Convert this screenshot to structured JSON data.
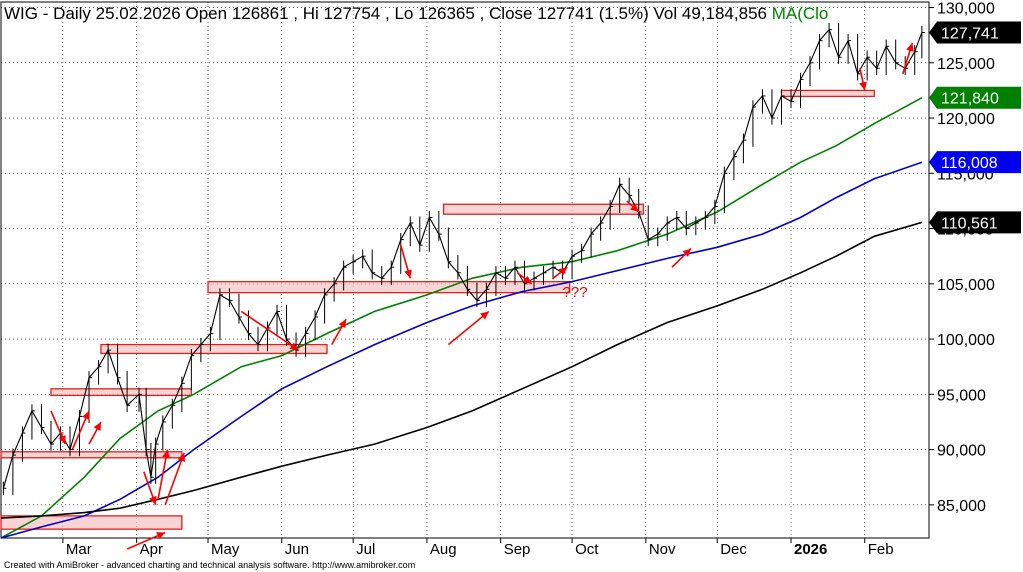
{
  "header": {
    "symbol": "WIG",
    "period": "Daily",
    "date": "25.02.2026",
    "open_label": "Open",
    "open": "126861",
    "high_label": "Hi",
    "high": "127754",
    "low_label": "Lo",
    "low": "126365",
    "close_label": "Close",
    "close": "127741",
    "change": "(1.5%)",
    "vol_label": "Vol",
    "volume": "49,184,856",
    "ma_label": "MA(Clo"
  },
  "footer": "Created with AmiBroker - advanced charting and technical analysis software. http://www.amibroker.com",
  "colors": {
    "price": "#000000",
    "ma_short": "#008000",
    "ma_mid": "#0000cc",
    "ma_long": "#000000",
    "zone_fill": "#f7c6c6",
    "zone_stroke": "#e02020",
    "arrow": "#ff0000",
    "grid": "#000000",
    "badge_price": "#000000",
    "badge_ma_short": "#008000",
    "badge_ma_mid": "#0000ee",
    "badge_ma_long": "#000000"
  },
  "chart_data": {
    "type": "line",
    "title": "WIG - Daily 25.02.2026",
    "ylim": [
      82000,
      130500
    ],
    "y_ticks": [
      85000,
      90000,
      95000,
      100000,
      105000,
      110000,
      115000,
      120000,
      125000,
      130000
    ],
    "y_tick_labels": [
      "85,000",
      "90,000",
      "95,000",
      "100,000",
      "105,000",
      "110,000",
      "115,000",
      "120,000",
      "125,000",
      "130,000"
    ],
    "x_range": [
      "2025-02-03",
      "2026-02-28"
    ],
    "months": [
      {
        "label": "Mar",
        "date": "2025-03-01",
        "bold": false
      },
      {
        "label": "Apr",
        "date": "2025-04-01",
        "bold": false
      },
      {
        "label": "May",
        "date": "2025-05-01",
        "bold": false
      },
      {
        "label": "Jun",
        "date": "2025-06-01",
        "bold": false
      },
      {
        "label": "Jul",
        "date": "2025-07-01",
        "bold": false
      },
      {
        "label": "Aug",
        "date": "2025-08-01",
        "bold": false
      },
      {
        "label": "Sep",
        "date": "2025-09-01",
        "bold": false
      },
      {
        "label": "Oct",
        "date": "2025-10-01",
        "bold": false
      },
      {
        "label": "Nov",
        "date": "2025-11-01",
        "bold": false
      },
      {
        "label": "Dec",
        "date": "2025-12-01",
        "bold": false
      },
      {
        "label": "2026",
        "date": "2026-01-01",
        "bold": true
      },
      {
        "label": "Feb",
        "date": "2026-02-01",
        "bold": false
      }
    ],
    "series": [
      {
        "kind": "price",
        "x": [
          "2025-02-04",
          "2025-02-08",
          "2025-02-12",
          "2025-02-16",
          "2025-02-20",
          "2025-02-24",
          "2025-02-28",
          "2025-03-04",
          "2025-03-08",
          "2025-03-12",
          "2025-03-16",
          "2025-03-20",
          "2025-03-24",
          "2025-03-28",
          "2025-04-02",
          "2025-04-05",
          "2025-04-07",
          "2025-04-09",
          "2025-04-12",
          "2025-04-16",
          "2025-04-20",
          "2025-04-24",
          "2025-04-28",
          "2025-05-02",
          "2025-05-06",
          "2025-05-10",
          "2025-05-14",
          "2025-05-18",
          "2025-05-22",
          "2025-05-26",
          "2025-05-30",
          "2025-06-03",
          "2025-06-07",
          "2025-06-11",
          "2025-06-15",
          "2025-06-19",
          "2025-06-23",
          "2025-06-27",
          "2025-07-01",
          "2025-07-05",
          "2025-07-09",
          "2025-07-13",
          "2025-07-17",
          "2025-07-21",
          "2025-07-25",
          "2025-07-29",
          "2025-08-02",
          "2025-08-06",
          "2025-08-10",
          "2025-08-14",
          "2025-08-18",
          "2025-08-22",
          "2025-08-26",
          "2025-08-30",
          "2025-09-03",
          "2025-09-07",
          "2025-09-11",
          "2025-09-15",
          "2025-09-19",
          "2025-09-23",
          "2025-09-27",
          "2025-10-01",
          "2025-10-05",
          "2025-10-09",
          "2025-10-13",
          "2025-10-17",
          "2025-10-21",
          "2025-10-25",
          "2025-10-29",
          "2025-11-02",
          "2025-11-06",
          "2025-11-10",
          "2025-11-14",
          "2025-11-18",
          "2025-11-22",
          "2025-11-26",
          "2025-11-30",
          "2025-12-04",
          "2025-12-08",
          "2025-12-12",
          "2025-12-16",
          "2025-12-20",
          "2025-12-24",
          "2025-12-28",
          "2026-01-01",
          "2026-01-05",
          "2026-01-09",
          "2026-01-13",
          "2026-01-17",
          "2026-01-21",
          "2026-01-25",
          "2026-01-29",
          "2026-02-02",
          "2026-02-06",
          "2026-02-10",
          "2026-02-14",
          "2026-02-18",
          "2026-02-22",
          "2026-02-25"
        ],
        "values": [
          86500,
          89500,
          91500,
          93500,
          92000,
          90500,
          91500,
          90000,
          93000,
          96500,
          97500,
          99000,
          96500,
          94000,
          95000,
          90000,
          87500,
          90500,
          92500,
          94000,
          96000,
          98500,
          99500,
          100500,
          104000,
          103500,
          102000,
          100500,
          99500,
          101000,
          102500,
          100000,
          99000,
          100500,
          102000,
          104000,
          105000,
          106500,
          107000,
          107500,
          106000,
          105500,
          106500,
          109000,
          110500,
          108500,
          111000,
          109500,
          107000,
          106000,
          104500,
          103500,
          104500,
          106000,
          105500,
          106500,
          105000,
          105500,
          106000,
          106500,
          106000,
          107500,
          108000,
          109500,
          110500,
          112000,
          114000,
          113000,
          111500,
          109000,
          109500,
          110500,
          111000,
          110000,
          110500,
          111000,
          112000,
          115000,
          116500,
          118000,
          121000,
          122000,
          120000,
          122000,
          121500,
          123500,
          125000,
          127000,
          128000,
          125500,
          127000,
          124000,
          125500,
          124500,
          126500,
          125000,
          124500,
          126000,
          127741
        ]
      },
      {
        "kind": "ma",
        "label": "121,840",
        "x": [
          "2025-02-03",
          "2025-02-20",
          "2025-03-10",
          "2025-03-25",
          "2025-04-10",
          "2025-04-25",
          "2025-05-15",
          "2025-06-01",
          "2025-06-20",
          "2025-07-10",
          "2025-08-01",
          "2025-08-20",
          "2025-09-10",
          "2025-10-01",
          "2025-10-20",
          "2025-11-10",
          "2025-12-01",
          "2025-12-20",
          "2026-01-05",
          "2026-01-20",
          "2026-02-05",
          "2026-02-25"
        ],
        "values": [
          82000,
          84000,
          87500,
          91000,
          93500,
          95000,
          97500,
          98500,
          100500,
          102500,
          104000,
          105500,
          106500,
          107000,
          108000,
          109500,
          111500,
          114000,
          116000,
          117500,
          119500,
          121840
        ]
      },
      {
        "kind": "ma",
        "label": "116,008",
        "x": [
          "2025-02-03",
          "2025-02-20",
          "2025-03-10",
          "2025-03-25",
          "2025-04-10",
          "2025-04-25",
          "2025-05-15",
          "2025-06-01",
          "2025-06-20",
          "2025-07-10",
          "2025-08-01",
          "2025-08-20",
          "2025-09-10",
          "2025-10-01",
          "2025-10-20",
          "2025-11-10",
          "2025-12-01",
          "2025-12-20",
          "2026-01-05",
          "2026-01-20",
          "2026-02-05",
          "2026-02-25"
        ],
        "values": [
          82000,
          83000,
          84000,
          85500,
          87500,
          90000,
          93000,
          95500,
          97500,
          99500,
          101500,
          103000,
          104300,
          105200,
          106200,
          107300,
          108300,
          109500,
          111000,
          112800,
          114500,
          116008
        ]
      },
      {
        "kind": "ma",
        "label": "110,561",
        "x": [
          "2025-02-03",
          "2025-02-20",
          "2025-03-10",
          "2025-03-25",
          "2025-04-10",
          "2025-04-25",
          "2025-05-15",
          "2025-06-01",
          "2025-06-20",
          "2025-07-10",
          "2025-08-01",
          "2025-08-20",
          "2025-09-10",
          "2025-10-01",
          "2025-10-20",
          "2025-11-10",
          "2025-12-01",
          "2025-12-20",
          "2026-01-05",
          "2026-01-20",
          "2026-02-05",
          "2026-02-25"
        ],
        "values": [
          83800,
          84000,
          84300,
          84700,
          85500,
          86300,
          87500,
          88500,
          89500,
          90500,
          92000,
          93500,
          95500,
          97500,
          99500,
          101500,
          103000,
          104500,
          106000,
          107500,
          109300,
          110561
        ]
      }
    ],
    "zones": [
      {
        "x0": "2025-02-03",
        "x1": "2025-04-20",
        "y0": 82800,
        "y1": 84000
      },
      {
        "x0": "2025-02-03",
        "x1": "2025-04-20",
        "y0": 89300,
        "y1": 89800
      },
      {
        "x0": "2025-02-24",
        "x1": "2025-04-24",
        "y0": 94900,
        "y1": 95500
      },
      {
        "x0": "2025-03-17",
        "x1": "2025-06-20",
        "y0": 98700,
        "y1": 99500
      },
      {
        "x0": "2025-05-01",
        "x1": "2025-09-30",
        "y0": 104200,
        "y1": 105200
      },
      {
        "x0": "2025-08-08",
        "x1": "2025-10-31",
        "y0": 111300,
        "y1": 112200
      },
      {
        "x0": "2025-12-28",
        "x1": "2026-02-05",
        "y0": 122000,
        "y1": 122500
      }
    ],
    "annotations": [
      {
        "text": "???",
        "x": "2025-09-27",
        "y": 103800
      }
    ],
    "arrows": [
      {
        "from": [
          "2025-02-24",
          93500
        ],
        "to": [
          "2025-03-02",
          90500
        ]
      },
      {
        "from": [
          "2025-03-05",
          90000
        ],
        "to": [
          "2025-03-12",
          93500
        ]
      },
      {
        "from": [
          "2025-03-12",
          90500
        ],
        "to": [
          "2025-03-17",
          92500
        ]
      },
      {
        "from": [
          "2025-04-04",
          88000
        ],
        "to": [
          "2025-04-09",
          85000
        ]
      },
      {
        "from": [
          "2025-04-10",
          85500
        ],
        "to": [
          "2025-04-14",
          90000
        ]
      },
      {
        "from": [
          "2025-03-28",
          81000
        ],
        "to": [
          "2025-04-13",
          82500
        ]
      },
      {
        "from": [
          "2025-04-13",
          85000
        ],
        "to": [
          "2025-04-21",
          89700
        ]
      },
      {
        "from": [
          "2025-05-15",
          102500
        ],
        "to": [
          "2025-06-08",
          99000
        ]
      },
      {
        "from": [
          "2025-06-22",
          99500
        ],
        "to": [
          "2025-06-28",
          101800
        ]
      },
      {
        "from": [
          "2025-07-21",
          108500
        ],
        "to": [
          "2025-07-25",
          105500
        ]
      },
      {
        "from": [
          "2025-08-10",
          99500
        ],
        "to": [
          "2025-08-27",
          102500
        ]
      },
      {
        "from": [
          "2025-09-08",
          106000
        ],
        "to": [
          "2025-09-14",
          105000
        ]
      },
      {
        "from": [
          "2025-09-23",
          105500
        ],
        "to": [
          "2025-09-29",
          106500
        ]
      },
      {
        "from": [
          "2025-10-24",
          112500
        ],
        "to": [
          "2025-10-29",
          111500
        ]
      },
      {
        "from": [
          "2025-11-12",
          106500
        ],
        "to": [
          "2025-11-20",
          108200
        ]
      },
      {
        "from": [
          "2026-01-30",
          124500
        ],
        "to": [
          "2026-02-01",
          122500
        ]
      },
      {
        "from": [
          "2026-02-17",
          124000
        ],
        "to": [
          "2026-02-21",
          126800
        ]
      }
    ]
  }
}
